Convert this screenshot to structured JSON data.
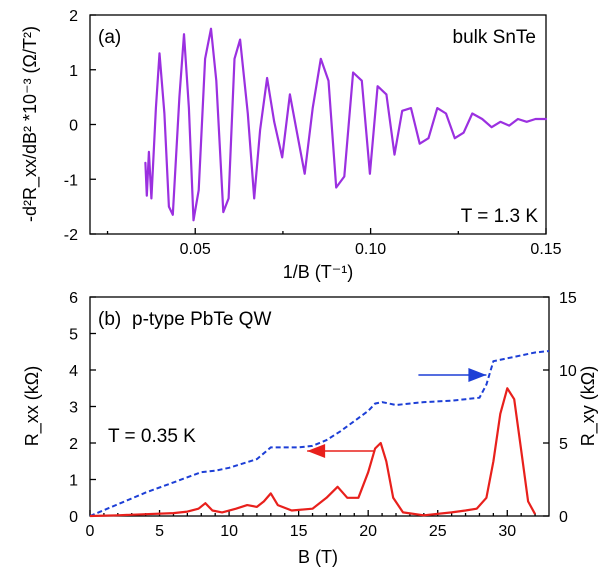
{
  "chart_data": [
    {
      "type": "line",
      "panel_label": "(a)",
      "annotation": "bulk SnTe",
      "temperature_label": "T = 1.3 K",
      "xlabel": "1/B (T⁻¹)",
      "ylabel": "-d²R_xx/dB² *10⁻³ (Ω/T²)",
      "xlim": [
        0.02,
        0.15
      ],
      "ylim": [
        -2,
        2
      ],
      "xticks": [
        0.05,
        0.1,
        0.15
      ],
      "xtick_labels": [
        "0.05",
        "0.10",
        "0.15"
      ],
      "yticks": [
        -2,
        -1,
        0,
        1,
        2
      ],
      "ytick_labels": [
        "-2",
        "-1",
        "0",
        "1",
        "2"
      ],
      "series": [
        {
          "color": "#9b30e0",
          "x": [
            0.0358,
            0.0362,
            0.0368,
            0.0375,
            0.0388,
            0.0398,
            0.0412,
            0.0425,
            0.0436,
            0.0455,
            0.0468,
            0.0482,
            0.0495,
            0.051,
            0.0528,
            0.0545,
            0.056,
            0.058,
            0.0595,
            0.0612,
            0.0628,
            0.065,
            0.0668,
            0.0685,
            0.0705,
            0.0725,
            0.0748,
            0.077,
            0.079,
            0.0812,
            0.0835,
            0.0858,
            0.088,
            0.0902,
            0.0925,
            0.095,
            0.0975,
            0.0998,
            0.102,
            0.1045,
            0.1068,
            0.109,
            0.1115,
            0.114,
            0.1165,
            0.119,
            0.1215,
            0.124,
            0.1265,
            0.129,
            0.1318,
            0.1345,
            0.137,
            0.1395,
            0.142,
            0.1445,
            0.147,
            0.15
          ],
          "values": [
            -0.7,
            -1.3,
            -0.5,
            -1.35,
            0.3,
            1.3,
            0.2,
            -1.5,
            -1.65,
            0.5,
            1.65,
            0.3,
            -1.75,
            -1.2,
            1.2,
            1.75,
            0.8,
            -1.6,
            -1.35,
            1.2,
            1.55,
            0.2,
            -1.35,
            -0.1,
            0.85,
            0.05,
            -0.6,
            0.55,
            -0.15,
            -0.9,
            0.3,
            1.2,
            0.8,
            -1.15,
            -0.95,
            0.95,
            0.8,
            -0.9,
            0.7,
            0.55,
            -0.55,
            0.25,
            0.3,
            -0.35,
            -0.25,
            0.3,
            0.2,
            -0.25,
            -0.15,
            0.2,
            0.1,
            -0.05,
            0.05,
            -0.02,
            0.1,
            0.05,
            0.1,
            0.1
          ]
        }
      ]
    },
    {
      "type": "line",
      "panel_label": "(b)",
      "annotation": "p-type PbTe QW",
      "temperature_label": "T = 0.35 K",
      "xlabel": "B (T)",
      "ylabel": "R_xx (kΩ)",
      "y2label": "R_xy (kΩ)",
      "xlim": [
        0,
        33
      ],
      "ylim": [
        0,
        6
      ],
      "y2lim": [
        0,
        15
      ],
      "xticks": [
        0,
        5,
        10,
        15,
        20,
        25,
        30
      ],
      "xtick_labels": [
        "0",
        "5",
        "10",
        "15",
        "20",
        "25",
        "30"
      ],
      "yticks": [
        0,
        1,
        2,
        3,
        4,
        5,
        6
      ],
      "ytick_labels": [
        "0",
        "1",
        "2",
        "3",
        "4",
        "5",
        "6"
      ],
      "y2ticks": [
        0,
        5,
        10,
        15
      ],
      "y2tick_labels": [
        "0",
        "5",
        "10",
        "15"
      ],
      "series": [
        {
          "axis": "left",
          "style": "solid",
          "color": "#e8201c",
          "x": [
            0,
            2,
            4,
            6,
            7,
            7.8,
            8.3,
            8.8,
            9.5,
            10.5,
            11.3,
            12,
            12.5,
            13,
            13.5,
            14.5,
            16,
            17,
            17.8,
            18.5,
            19.3,
            20,
            20.5,
            20.9,
            21.3,
            21.8,
            22.5,
            24,
            26,
            27,
            27.8,
            28.5,
            29,
            29.5,
            30,
            30.5,
            31,
            31.5,
            32
          ],
          "values": [
            0,
            0.02,
            0.05,
            0.08,
            0.12,
            0.2,
            0.35,
            0.15,
            0.1,
            0.2,
            0.3,
            0.25,
            0.4,
            0.62,
            0.3,
            0.15,
            0.2,
            0.5,
            0.8,
            0.5,
            0.5,
            1.2,
            1.85,
            2.0,
            1.5,
            0.5,
            0.1,
            0.02,
            0.1,
            0.15,
            0.2,
            0.5,
            1.5,
            2.8,
            3.5,
            3.2,
            1.8,
            0.4,
            0.05
          ]
        },
        {
          "axis": "right",
          "style": "dashed",
          "color": "#1d3fd6",
          "x": [
            0,
            2,
            4,
            6,
            8,
            9,
            10,
            12,
            13,
            15,
            16,
            17,
            18,
            19,
            20,
            20.5,
            21,
            22,
            24,
            26,
            27,
            28,
            28.5,
            29,
            30,
            31,
            32,
            33
          ],
          "values": [
            0,
            0.8,
            1.6,
            2.3,
            3.0,
            3.1,
            3.3,
            3.9,
            4.7,
            4.7,
            4.8,
            5.2,
            5.8,
            6.5,
            7.2,
            7.7,
            7.8,
            7.6,
            7.8,
            7.9,
            8.0,
            8.1,
            9.0,
            10.6,
            10.8,
            11.0,
            11.2,
            11.3
          ]
        }
      ],
      "arrows": [
        {
          "direction": "left",
          "color": "#e8201c",
          "at": [
            20.5,
            2.0
          ]
        },
        {
          "direction": "right",
          "color": "#1d3fd6",
          "at": [
            28.5,
            10.0
          ]
        }
      ]
    }
  ]
}
